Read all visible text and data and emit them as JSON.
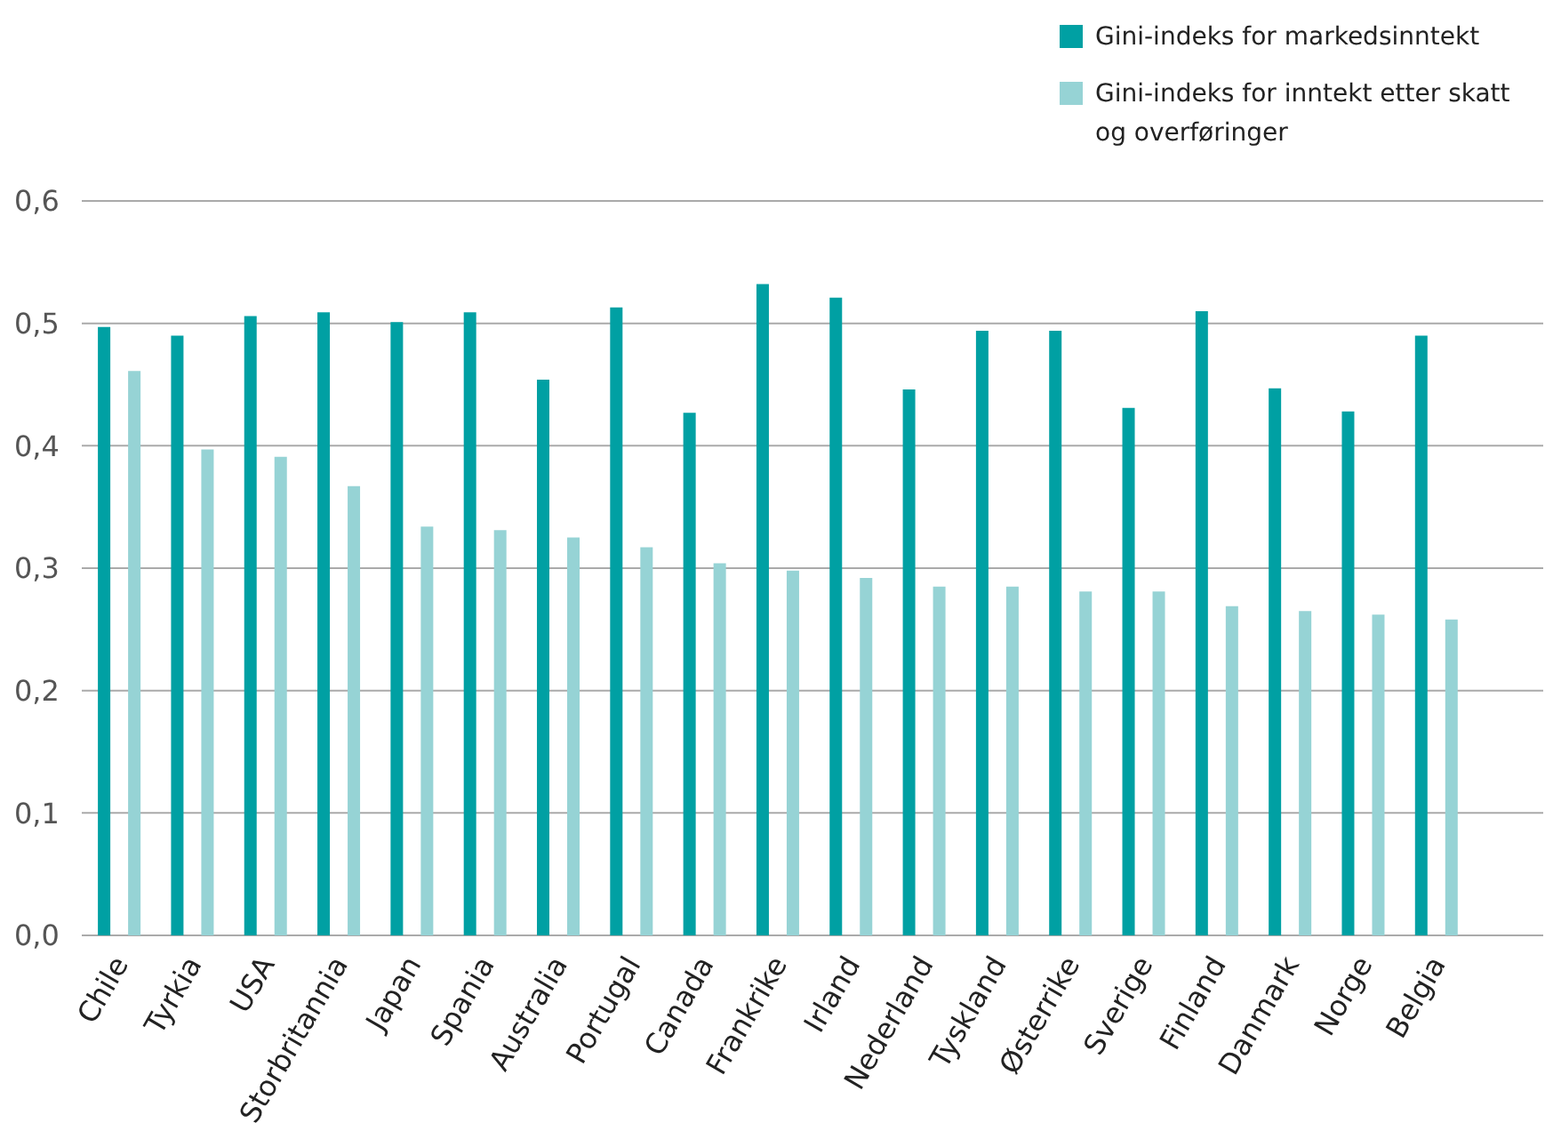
{
  "chart_data": {
    "type": "bar",
    "categories": [
      "Chile",
      "Tyrkia",
      "USA",
      "Storbritannia",
      "Japan",
      "Spania",
      "Australia",
      "Portugal",
      "Canada",
      "Frankrike",
      "Irland",
      "Nederland",
      "Tyskland",
      "Østerrike",
      "Sverige",
      "Finland",
      "Danmark",
      "Norge",
      "Belgia"
    ],
    "series": [
      {
        "name": "Gini-indeks for markedsinntekt",
        "color": "#00a0a3",
        "values": [
          0.497,
          0.49,
          0.506,
          0.509,
          0.501,
          0.509,
          0.454,
          0.513,
          0.427,
          0.532,
          0.521,
          0.446,
          0.494,
          0.494,
          0.431,
          0.51,
          0.447,
          0.428,
          0.49
        ]
      },
      {
        "name": "Gini-indeks for inntekt etter skatt og overføringer",
        "color": "#96d3d5",
        "values": [
          0.461,
          0.397,
          0.391,
          0.367,
          0.334,
          0.331,
          0.325,
          0.317,
          0.304,
          0.298,
          0.292,
          0.285,
          0.285,
          0.281,
          0.281,
          0.269,
          0.265,
          0.262,
          0.258
        ]
      }
    ],
    "ylim": [
      0,
      0.6
    ],
    "yticks": [
      {
        "value": 0,
        "label": "0,0"
      },
      {
        "value": 0.1,
        "label": "0,1"
      },
      {
        "value": 0.2,
        "label": "0,2"
      },
      {
        "value": 0.3,
        "label": "0,3"
      },
      {
        "value": 0.4,
        "label": "0,4"
      },
      {
        "value": 0.5,
        "label": "0,5"
      },
      {
        "value": 0.6,
        "label": "0,6"
      }
    ],
    "grid": "y",
    "legend": "top right"
  }
}
